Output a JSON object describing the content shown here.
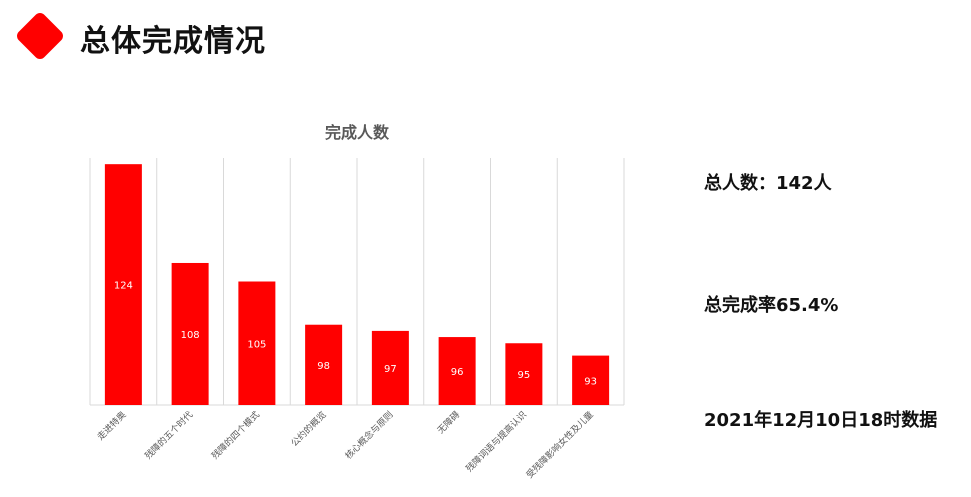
{
  "page": {
    "title": "总体完成情况"
  },
  "stats": {
    "total": "总人数：142人",
    "rate": "总完成率65.4%",
    "timestamp": "2021年12月10日18时数据"
  },
  "colors": {
    "accent": "#ff0000",
    "bar": "#ff0000",
    "grid": "#d9d9d9",
    "title": "#595959"
  },
  "chart_data": {
    "type": "bar",
    "title": "完成人数",
    "xlabel": "",
    "ylabel": "",
    "categories": [
      "走进特奥",
      "残障的五个时代",
      "残障的四个模式",
      "公约的概览",
      "核心概念与原则",
      "无障碍",
      "残障词语与提高认识",
      "受残障影响女性及儿童"
    ],
    "values": [
      124,
      108,
      105,
      98,
      97,
      96,
      95,
      93
    ],
    "ylim": [
      85,
      125
    ],
    "grid": true,
    "legend": "none",
    "data_labels": true
  }
}
